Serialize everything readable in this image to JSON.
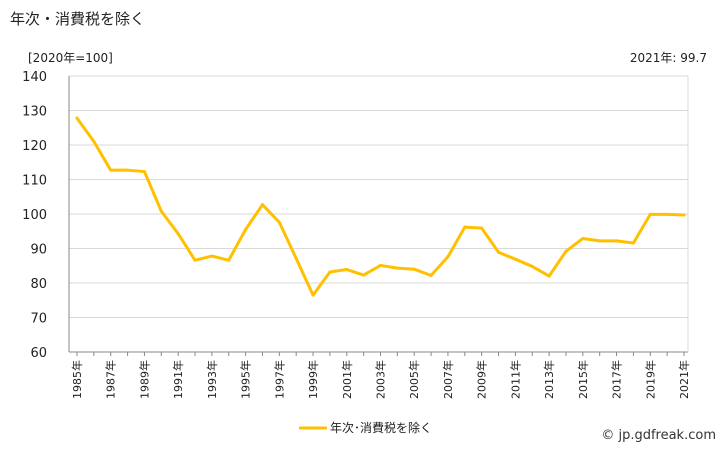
{
  "header": {
    "title": "年次・消費税を除く",
    "unit_label": "[2020年=100]",
    "latest_value": "2021年: 99.7"
  },
  "footer": {
    "source": "© jp.gdfreak.com"
  },
  "colors": {
    "series": "#FFC000",
    "grid": "#d9d9d9",
    "axis": "#888888"
  },
  "chart_data": {
    "type": "line",
    "title": "",
    "xlabel": "",
    "ylabel": "",
    "ylim": [
      60,
      140
    ],
    "yticks": [
      60,
      70,
      80,
      90,
      100,
      110,
      120,
      130,
      140
    ],
    "grid": true,
    "legend_position": "bottom-center",
    "x": [
      1985,
      1986,
      1987,
      1988,
      1989,
      1990,
      1991,
      1992,
      1993,
      1994,
      1995,
      1996,
      1997,
      1998,
      1999,
      2000,
      2001,
      2002,
      2003,
      2004,
      2005,
      2006,
      2007,
      2008,
      2009,
      2010,
      2011,
      2012,
      2013,
      2014,
      2015,
      2016,
      2017,
      2018,
      2019,
      2020,
      2021
    ],
    "x_tick_labels": [
      "1985年",
      "1987年",
      "1989年",
      "1991年",
      "1993年",
      "1995年",
      "1997年",
      "1999年",
      "2001年",
      "2003年",
      "2005年",
      "2007年",
      "2009年",
      "2011年",
      "2013年",
      "2015年",
      "2017年",
      "2019年",
      "2021年"
    ],
    "series": [
      {
        "name": "年次･消費税を除く",
        "values": [
          127.8,
          121.0,
          112.7,
          112.7,
          112.3,
          100.8,
          94.3,
          86.6,
          87.8,
          86.6,
          95.5,
          102.7,
          97.6,
          87.1,
          76.5,
          83.2,
          83.9,
          82.3,
          85.1,
          84.3,
          84.0,
          82.2,
          87.6,
          96.2,
          95.9,
          88.9,
          86.9,
          84.8,
          82.0,
          89.2,
          92.9,
          92.2,
          92.2,
          91.6,
          99.9,
          99.9,
          99.7
        ]
      }
    ]
  }
}
